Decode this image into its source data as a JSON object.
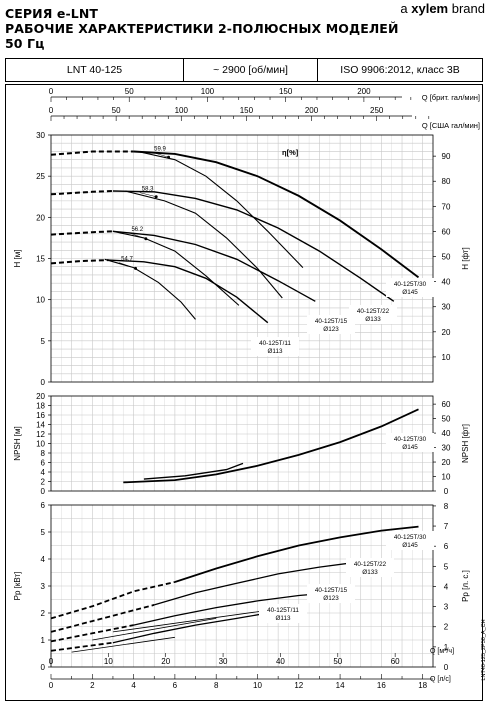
{
  "header": {
    "line1": "СЕРИЯ e-LNT",
    "line2": "РАБОЧИЕ ХАРАКТЕРИСТИКИ 2-ПОЛЮСНЫХ МОДЕЛЕЙ",
    "line3": "50 Гц",
    "brand_prefix": "a",
    "brand_name": "xylem",
    "brand_suffix": "brand"
  },
  "info": {
    "model": "LNT 40-125",
    "speed": "~ 2900 [об/мин]",
    "standard": "ISO 9906:2012, класс 3В"
  },
  "side_label": "LNT40-125_2P50_A_CH",
  "colors": {
    "line": "#000000",
    "grid": "#c8c8c8",
    "grid_minor": "#e2e2e2"
  },
  "chart_data": [
    {
      "id": "head",
      "type": "line",
      "xlabel_top1": "Q [брит. гал/мин]",
      "xlabel_top2": "Q [США гал/мин]",
      "ylabel": "H [м]",
      "ylabel_right": "H [фт]",
      "xlim": [
        0,
        18.5
      ],
      "ylim": [
        0,
        30
      ],
      "top1_ticks": [
        0,
        50,
        100,
        150,
        200
      ],
      "top2_ticks": [
        0,
        50,
        100,
        150,
        200,
        250
      ],
      "y_ticks": [
        0,
        5,
        10,
        15,
        20,
        25,
        30
      ],
      "y_ticks_right": [
        10,
        20,
        30,
        40,
        50,
        60,
        70,
        80,
        90
      ],
      "eta_label": "η[%]",
      "eta_values": [
        "59.9",
        "58.3",
        "56.2",
        "54.7"
      ],
      "series": [
        {
          "name": "40-125T/30",
          "diameter": "Ø145",
          "dashed": [
            [
              0,
              27.6
            ],
            [
              2,
              28.0
            ],
            [
              4,
              28.0
            ]
          ],
          "x": [
            4,
            6,
            8,
            10,
            12,
            14,
            16,
            17.8
          ],
          "y": [
            28.0,
            27.7,
            26.7,
            25.0,
            22.6,
            19.6,
            16.1,
            12.7
          ]
        },
        {
          "name": "40-125T/22",
          "diameter": "Ø133",
          "dashed": [
            [
              0,
              22.8
            ],
            [
              2,
              23.1
            ],
            [
              3,
              23.2
            ]
          ],
          "x": [
            3,
            5,
            7,
            9,
            11,
            13,
            15,
            16.6
          ],
          "y": [
            23.2,
            23.1,
            22.3,
            20.9,
            18.7,
            15.9,
            12.6,
            9.8
          ]
        },
        {
          "name": "40-125T/15",
          "diameter": "Ø123",
          "dashed": [
            [
              0,
              17.9
            ],
            [
              2,
              18.2
            ],
            [
              3,
              18.3
            ]
          ],
          "x": [
            3,
            5,
            7,
            9,
            11,
            12.8
          ],
          "y": [
            18.3,
            17.8,
            16.7,
            14.9,
            12.3,
            9.8
          ]
        },
        {
          "name": "40-125T/11",
          "diameter": "Ø113",
          "dashed": [
            [
              0,
              14.4
            ],
            [
              1.5,
              14.7
            ],
            [
              2.8,
              14.8
            ]
          ],
          "x": [
            2.8,
            4.5,
            6,
            7.5,
            9,
            10.5
          ],
          "y": [
            14.8,
            14.6,
            14.0,
            12.6,
            10.3,
            7.2
          ]
        }
      ],
      "efficiency_curves": [
        {
          "label": "59.9",
          "x": [
            4.2,
            6,
            7.5,
            9,
            10.5,
            12.2
          ],
          "y": [
            28.0,
            27.0,
            25.0,
            22.0,
            18.3,
            13.9
          ]
        },
        {
          "label": "58.3",
          "x": [
            3.6,
            5.5,
            7,
            8.5,
            10,
            11.2
          ],
          "y": [
            23.2,
            22.0,
            20.5,
            17.5,
            13.8,
            10.2
          ]
        },
        {
          "label": "56.2",
          "x": [
            3.0,
            4.5,
            6,
            7.5,
            9.1
          ],
          "y": [
            18.3,
            17.5,
            15.9,
            12.9,
            9.3
          ]
        },
        {
          "label": "54.7",
          "x": [
            2.6,
            4,
            5.2,
            6.3,
            7.0
          ],
          "y": [
            14.9,
            13.9,
            12.1,
            9.7,
            7.6
          ]
        }
      ]
    },
    {
      "id": "npsh",
      "type": "line",
      "ylabel": "NPSH [м]",
      "ylabel_right": "NPSH [фт]",
      "xlim": [
        0,
        18.5
      ],
      "ylim": [
        0,
        20
      ],
      "y_ticks": [
        0,
        2,
        4,
        6,
        8,
        10,
        12,
        14,
        16,
        18,
        20
      ],
      "y_ticks_right": [
        0,
        10,
        20,
        30,
        40,
        50,
        60
      ],
      "series": [
        {
          "name": "40-125T/30",
          "diameter": "Ø145",
          "x": [
            3.5,
            6,
            8,
            10,
            12,
            14,
            16,
            17.8
          ],
          "y": [
            1.8,
            2.3,
            3.5,
            5.3,
            7.6,
            10.3,
            13.6,
            17.2
          ]
        },
        {
          "name": "40-125T/11",
          "diameter": "Ø113",
          "x": [
            4.5,
            6.5,
            8.5,
            9.3
          ],
          "y": [
            2.5,
            3.2,
            4.5,
            5.8
          ]
        }
      ]
    },
    {
      "id": "power",
      "type": "line",
      "ylabel": "Pp [кВт]",
      "ylabel_right": "Pp [л. с.]",
      "xlabel1": "Q [м³/ч]",
      "xlabel2": "Q [л/с]",
      "xlim": [
        0,
        18.5
      ],
      "ylim": [
        0,
        6
      ],
      "y_ticks": [
        0,
        1,
        2,
        3,
        4,
        5,
        6
      ],
      "y_ticks_right": [
        0,
        1,
        2,
        3,
        4,
        5,
        6,
        7,
        8
      ],
      "x_ticks_m3h": [
        0,
        10,
        20,
        30,
        40,
        50,
        60
      ],
      "x_ticks_ls": [
        0,
        2,
        4,
        6,
        8,
        10,
        12,
        14,
        16,
        18
      ],
      "series": [
        {
          "name": "40-125T/30",
          "diameter": "Ø145",
          "dashed": [
            [
              0,
              1.8
            ],
            [
              2,
              2.25
            ],
            [
              4,
              2.8
            ],
            [
              6,
              3.15
            ]
          ],
          "x": [
            6,
            8,
            10,
            12,
            14,
            16,
            17.8
          ],
          "y": [
            3.15,
            3.65,
            4.1,
            4.5,
            4.8,
            5.05,
            5.2
          ]
        },
        {
          "name": "40-125T/22",
          "diameter": "Ø133",
          "dashed": [
            [
              0,
              1.3
            ],
            [
              2,
              1.7
            ],
            [
              4,
              2.1
            ],
            [
              5,
              2.3
            ]
          ],
          "x": [
            5,
            7,
            9,
            11,
            13,
            15,
            16.6
          ],
          "y": [
            2.3,
            2.75,
            3.1,
            3.45,
            3.7,
            3.9,
            4.0
          ]
        },
        {
          "name": "40-125T/15",
          "diameter": "Ø123",
          "dashed": [
            [
              0,
              0.95
            ],
            [
              2,
              1.25
            ],
            [
              4,
              1.55
            ]
          ],
          "x": [
            4,
            6,
            8,
            10,
            12,
            12.8
          ],
          "y": [
            1.55,
            1.9,
            2.2,
            2.45,
            2.65,
            2.7
          ]
        },
        {
          "name": "40-125T/11",
          "diameter": "Ø113",
          "dashed": [
            [
              0,
              0.6
            ],
            [
              2,
              0.8
            ],
            [
              3,
              0.9
            ]
          ],
          "x": [
            3,
            5,
            7,
            9,
            10.5
          ],
          "y": [
            0.9,
            1.25,
            1.55,
            1.8,
            2.0
          ]
        }
      ]
    }
  ]
}
